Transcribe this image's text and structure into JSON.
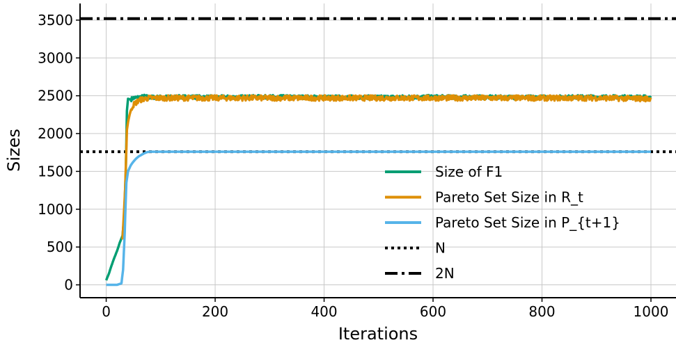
{
  "chart_data": {
    "type": "line",
    "xlabel": "Iterations",
    "ylabel": "Sizes",
    "xlim": [
      -48,
      1046
    ],
    "ylim": [
      -170,
      3720
    ],
    "xticks": [
      0,
      200,
      400,
      600,
      800,
      1000
    ],
    "yticks": [
      0,
      500,
      1000,
      1500,
      2000,
      2500,
      3000,
      3500
    ],
    "grid": true,
    "legend_position": "lower-right",
    "series": [
      {
        "name": "Size of F1",
        "color": "#029e73",
        "style": "solid",
        "x": [
          0,
          5,
          10,
          15,
          20,
          25,
          30,
          33,
          36,
          38,
          40,
          45,
          50,
          60,
          70,
          80,
          100,
          150,
          200,
          300,
          400,
          500,
          600,
          700,
          800,
          900,
          1000
        ],
        "y": [
          60,
          150,
          260,
          360,
          450,
          560,
          650,
          900,
          1500,
          2300,
          2460,
          2450,
          2470,
          2480,
          2490,
          2480,
          2480,
          2485,
          2480,
          2485,
          2480,
          2480,
          2485,
          2480,
          2480,
          2485,
          2480
        ],
        "noise": 25
      },
      {
        "name": "Pareto Set Size in R_t",
        "color": "#de8f05",
        "style": "solid",
        "x": [
          30,
          35,
          38,
          40,
          43,
          46,
          50,
          55,
          60,
          70,
          80,
          100,
          150,
          200,
          300,
          400,
          500,
          600,
          700,
          800,
          900,
          1000
        ],
        "y": [
          600,
          1300,
          2050,
          2150,
          2250,
          2330,
          2380,
          2410,
          2440,
          2460,
          2470,
          2470,
          2470,
          2470,
          2470,
          2470,
          2470,
          2470,
          2470,
          2470,
          2470,
          2460
        ],
        "noise": 35
      },
      {
        "name": "Pareto Set Size in P_{t+1}",
        "color": "#56b4e9",
        "style": "solid",
        "x": [
          0,
          10,
          20,
          28,
          31,
          34,
          37,
          40,
          45,
          50,
          55,
          60,
          65,
          70,
          75,
          80,
          100,
          200,
          400,
          600,
          800,
          1000
        ],
        "y": [
          0,
          0,
          0,
          20,
          200,
          700,
          1350,
          1500,
          1580,
          1630,
          1670,
          1700,
          1720,
          1740,
          1755,
          1760,
          1760,
          1760,
          1760,
          1760,
          1760,
          1760
        ],
        "noise": 0
      },
      {
        "name": "N",
        "color": "#000000",
        "style": "dotted",
        "y": 1760
      },
      {
        "name": "2N",
        "color": "#000000",
        "style": "dashdot",
        "y": 3520
      }
    ]
  }
}
